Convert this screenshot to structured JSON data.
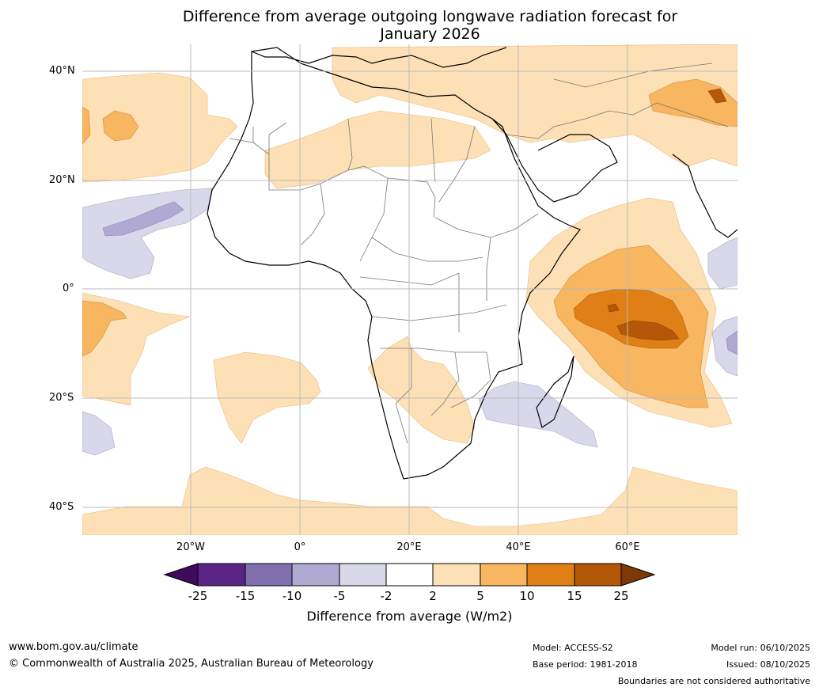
{
  "title": {
    "line1": "Difference from average outgoing longwave radiation forecast for",
    "line2": "January 2026"
  },
  "map": {
    "lat_labels": [
      "40°N",
      "20°N",
      "0°",
      "20°S",
      "40°S"
    ],
    "lon_labels": [
      "20°W",
      "0°",
      "20°E",
      "40°E",
      "60°E"
    ]
  },
  "legend": {
    "ticks": [
      "-25",
      "-15",
      "-10",
      "-5",
      "-2",
      "2",
      "5",
      "10",
      "15",
      "25"
    ],
    "colors": [
      "#3f0a5e",
      "#5b2585",
      "#8070ad",
      "#b0a9d1",
      "#d9d8ea",
      "#ffffff",
      "#fde0b6",
      "#f9b661",
      "#df7f16",
      "#b35808",
      "#7d3a06"
    ],
    "title": "Difference from average (W/m2)"
  },
  "footer": {
    "website": "www.bom.gov.au/climate",
    "copyright": "© Commonwealth of Australia 2025, Australian Bureau of Meteorology",
    "model": "Model: ACCESS-S2",
    "base_period": "Base period: 1981-2018",
    "model_run": "Model run: 06/10/2025",
    "issued": "Issued: 08/10/2025",
    "disclaimer": "Boundaries are not considered authoritative"
  }
}
